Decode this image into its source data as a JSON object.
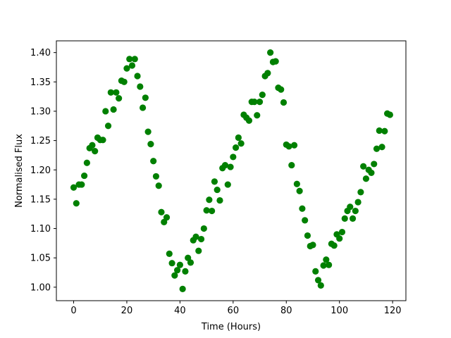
{
  "chart_data": {
    "type": "scatter",
    "title": "",
    "xlabel": "Time (Hours)",
    "ylabel": "Normalised Flux",
    "xlim": [
      -6.5,
      125
    ],
    "ylim": [
      0.977,
      1.42
    ],
    "xticks": [
      0,
      20,
      40,
      60,
      80,
      100,
      120
    ],
    "xtick_labels": [
      "0",
      "20",
      "40",
      "60",
      "80",
      "100",
      "120"
    ],
    "yticks": [
      1.0,
      1.05,
      1.1,
      1.15,
      1.2,
      1.25,
      1.3,
      1.35,
      1.4
    ],
    "ytick_labels": [
      "1.00",
      "1.05",
      "1.10",
      "1.15",
      "1.20",
      "1.25",
      "1.30",
      "1.35",
      "1.40"
    ],
    "grid": false,
    "marker_color": "#008000",
    "points": [
      [
        0,
        1.17
      ],
      [
        1,
        1.143
      ],
      [
        2,
        1.175
      ],
      [
        3,
        1.175
      ],
      [
        4,
        1.19
      ],
      [
        5,
        1.212
      ],
      [
        6,
        1.237
      ],
      [
        7,
        1.242
      ],
      [
        8,
        1.232
      ],
      [
        9,
        1.255
      ],
      [
        10,
        1.251
      ],
      [
        11,
        1.251
      ],
      [
        12,
        1.3
      ],
      [
        13,
        1.275
      ],
      [
        14,
        1.332
      ],
      [
        15,
        1.303
      ],
      [
        16,
        1.332
      ],
      [
        17,
        1.322
      ],
      [
        18,
        1.352
      ],
      [
        19,
        1.35
      ],
      [
        20,
        1.373
      ],
      [
        21,
        1.389
      ],
      [
        22,
        1.378
      ],
      [
        23,
        1.389
      ],
      [
        24,
        1.36
      ],
      [
        25,
        1.342
      ],
      [
        26,
        1.306
      ],
      [
        27,
        1.323
      ],
      [
        28,
        1.265
      ],
      [
        29,
        1.244
      ],
      [
        30,
        1.215
      ],
      [
        31,
        1.189
      ],
      [
        32,
        1.173
      ],
      [
        33,
        1.128
      ],
      [
        34,
        1.111
      ],
      [
        35,
        1.119
      ],
      [
        36,
        1.057
      ],
      [
        37,
        1.041
      ],
      [
        38,
        1.02
      ],
      [
        39,
        1.029
      ],
      [
        40,
        1.038
      ],
      [
        41,
        0.997
      ],
      [
        42,
        1.027
      ],
      [
        43,
        1.05
      ],
      [
        44,
        1.042
      ],
      [
        45,
        1.08
      ],
      [
        46,
        1.086
      ],
      [
        47,
        1.062
      ],
      [
        48,
        1.082
      ],
      [
        49,
        1.1
      ],
      [
        50,
        1.131
      ],
      [
        51,
        1.149
      ],
      [
        52,
        1.13
      ],
      [
        53,
        1.18
      ],
      [
        54,
        1.166
      ],
      [
        55,
        1.148
      ],
      [
        56,
        1.203
      ],
      [
        57,
        1.208
      ],
      [
        58,
        1.175
      ],
      [
        59,
        1.205
      ],
      [
        60,
        1.222
      ],
      [
        61,
        1.238
      ],
      [
        62,
        1.255
      ],
      [
        63,
        1.245
      ],
      [
        64,
        1.294
      ],
      [
        65,
        1.289
      ],
      [
        66,
        1.284
      ],
      [
        67,
        1.316
      ],
      [
        68,
        1.316
      ],
      [
        69,
        1.293
      ],
      [
        70,
        1.316
      ],
      [
        71,
        1.328
      ],
      [
        72,
        1.36
      ],
      [
        73,
        1.365
      ],
      [
        74,
        1.4
      ],
      [
        75,
        1.384
      ],
      [
        76,
        1.385
      ],
      [
        77,
        1.34
      ],
      [
        78,
        1.337
      ],
      [
        79,
        1.315
      ],
      [
        80,
        1.243
      ],
      [
        81,
        1.24
      ],
      [
        82,
        1.208
      ],
      [
        83,
        1.242
      ],
      [
        84,
        1.176
      ],
      [
        85,
        1.164
      ],
      [
        86,
        1.134
      ],
      [
        87,
        1.114
      ],
      [
        88,
        1.088
      ],
      [
        89,
        1.07
      ],
      [
        90,
        1.072
      ],
      [
        91,
        1.027
      ],
      [
        92,
        1.012
      ],
      [
        93,
        1.003
      ],
      [
        94,
        1.037
      ],
      [
        95,
        1.047
      ],
      [
        96,
        1.038
      ],
      [
        97,
        1.074
      ],
      [
        98,
        1.071
      ],
      [
        99,
        1.09
      ],
      [
        100,
        1.083
      ],
      [
        101,
        1.094
      ],
      [
        102,
        1.117
      ],
      [
        103,
        1.13
      ],
      [
        104,
        1.137
      ],
      [
        105,
        1.117
      ],
      [
        106,
        1.13
      ],
      [
        107,
        1.145
      ],
      [
        108,
        1.162
      ],
      [
        109,
        1.206
      ],
      [
        110,
        1.185
      ],
      [
        111,
        1.2
      ],
      [
        112,
        1.195
      ],
      [
        113,
        1.21
      ],
      [
        114,
        1.236
      ],
      [
        115,
        1.267
      ],
      [
        116,
        1.239
      ],
      [
        117,
        1.266
      ],
      [
        118,
        1.296
      ],
      [
        119,
        1.294
      ]
    ]
  }
}
